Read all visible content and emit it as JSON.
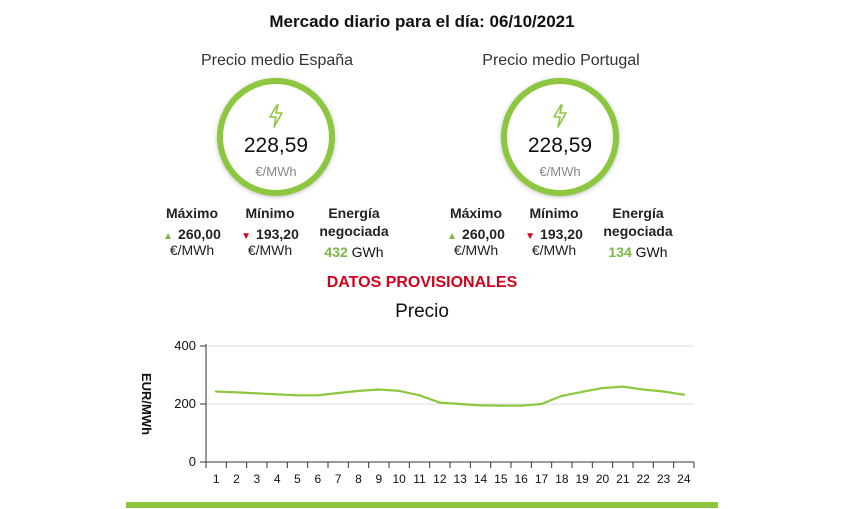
{
  "title": "Mercado diario para el día: 06/10/2021",
  "markets": [
    {
      "name": "Precio medio España",
      "price": "228,59",
      "unit": "€/MWh",
      "max_label": "Máximo",
      "max_value": "260,00",
      "max_unit": "€/MWh",
      "min_label": "Mínimo",
      "min_value": "193,20",
      "min_unit": "€/MWh",
      "energy_label_1": "Energía",
      "energy_label_2": "negociada",
      "energy_value": "432",
      "energy_unit": "GWh"
    },
    {
      "name": "Precio medio Portugal",
      "price": "228,59",
      "unit": "€/MWh",
      "max_label": "Máximo",
      "max_value": "260,00",
      "max_unit": "€/MWh",
      "min_label": "Mínimo",
      "min_value": "193,20",
      "min_unit": "€/MWh",
      "energy_label_1": "Energía",
      "energy_label_2": "negociada",
      "energy_value": "134",
      "energy_unit": "GWh"
    }
  ],
  "provisional": "DATOS PROVISIONALES",
  "colors": {
    "accent": "#8dc63f",
    "up": "#7ab648",
    "down": "#d0021b"
  },
  "icons": {
    "price": "lightning-bolt-icon",
    "max": "triangle-up-icon",
    "min": "triangle-down-icon"
  },
  "chart_data": {
    "type": "line",
    "title": "Precio",
    "xlabel": "",
    "ylabel": "EUR/MWh",
    "ylim": [
      0,
      400
    ],
    "yticks": [
      0,
      200,
      400
    ],
    "grid": true,
    "legend": "none",
    "x": [
      1,
      2,
      3,
      4,
      5,
      6,
      7,
      8,
      9,
      10,
      11,
      12,
      13,
      14,
      15,
      16,
      17,
      18,
      19,
      20,
      21,
      22,
      23,
      24
    ],
    "series": [
      {
        "color": "#8dc63f",
        "values": [
          243,
          240,
          237,
          233,
          230,
          230,
          238,
          245,
          250,
          245,
          230,
          205,
          200,
          195,
          194,
          194,
          200,
          228,
          242,
          255,
          260,
          250,
          243,
          232
        ]
      }
    ]
  }
}
